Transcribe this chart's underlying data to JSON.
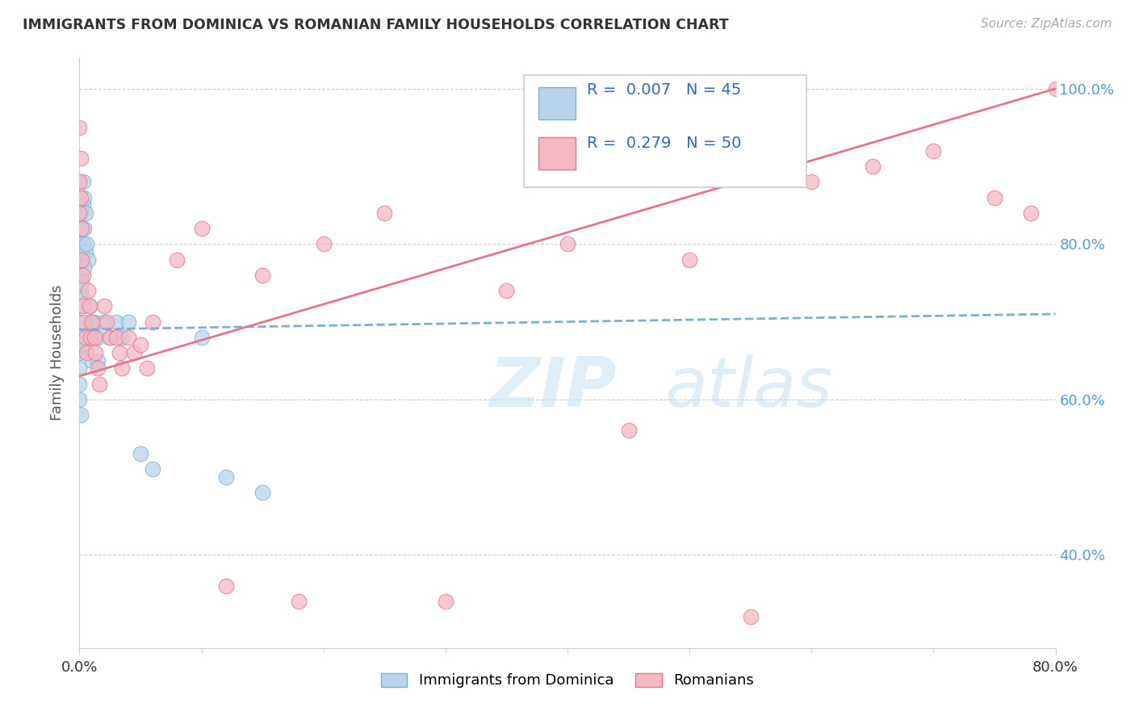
{
  "title": "IMMIGRANTS FROM DOMINICA VS ROMANIAN FAMILY HOUSEHOLDS CORRELATION CHART",
  "source": "Source: ZipAtlas.com",
  "ylabel": "Family Households",
  "dominica_x": [
    0.0,
    0.0,
    0.0,
    0.0,
    0.0,
    0.0,
    0.001,
    0.001,
    0.001,
    0.001,
    0.001,
    0.002,
    0.002,
    0.002,
    0.003,
    0.003,
    0.003,
    0.004,
    0.004,
    0.005,
    0.005,
    0.006,
    0.007,
    0.008,
    0.009,
    0.01,
    0.01,
    0.012,
    0.015,
    0.015,
    0.02,
    0.025,
    0.03,
    0.035,
    0.04,
    0.05,
    0.06,
    0.1,
    0.12,
    0.15,
    0.0,
    0.001,
    0.002,
    0.003,
    0.004
  ],
  "dominica_y": [
    0.72,
    0.7,
    0.68,
    0.66,
    0.64,
    0.62,
    0.84,
    0.8,
    0.78,
    0.76,
    0.74,
    0.82,
    0.78,
    0.75,
    0.88,
    0.85,
    0.8,
    0.86,
    0.82,
    0.84,
    0.79,
    0.8,
    0.78,
    0.72,
    0.7,
    0.68,
    0.65,
    0.7,
    0.68,
    0.65,
    0.7,
    0.68,
    0.7,
    0.68,
    0.7,
    0.53,
    0.51,
    0.68,
    0.5,
    0.48,
    0.6,
    0.58,
    0.67,
    0.73,
    0.77
  ],
  "romanians_x": [
    0.0,
    0.0,
    0.0,
    0.001,
    0.001,
    0.002,
    0.002,
    0.003,
    0.003,
    0.004,
    0.005,
    0.006,
    0.007,
    0.008,
    0.009,
    0.01,
    0.012,
    0.013,
    0.015,
    0.016,
    0.02,
    0.022,
    0.025,
    0.03,
    0.033,
    0.035,
    0.04,
    0.045,
    0.05,
    0.055,
    0.06,
    0.08,
    0.1,
    0.12,
    0.15,
    0.18,
    0.2,
    0.25,
    0.3,
    0.35,
    0.4,
    0.45,
    0.5,
    0.55,
    0.6,
    0.65,
    0.7,
    0.75,
    0.78,
    0.8
  ],
  "romanians_y": [
    0.95,
    0.88,
    0.84,
    0.91,
    0.86,
    0.82,
    0.78,
    0.76,
    0.72,
    0.7,
    0.68,
    0.66,
    0.74,
    0.72,
    0.68,
    0.7,
    0.68,
    0.66,
    0.64,
    0.62,
    0.72,
    0.7,
    0.68,
    0.68,
    0.66,
    0.64,
    0.68,
    0.66,
    0.67,
    0.64,
    0.7,
    0.78,
    0.82,
    0.36,
    0.76,
    0.34,
    0.8,
    0.84,
    0.34,
    0.74,
    0.8,
    0.56,
    0.78,
    0.32,
    0.88,
    0.9,
    0.92,
    0.86,
    0.84,
    1.0
  ],
  "xlim": [
    0.0,
    0.8
  ],
  "ylim": [
    0.28,
    1.04
  ],
  "yticks": [
    0.4,
    0.6,
    0.8,
    1.0
  ],
  "ytick_labels_right": [
    "40.0%",
    "60.0%",
    "80.0%",
    "100.0%"
  ],
  "xtick_labels": [
    "0.0%",
    "80.0%"
  ],
  "grid_color": "#cccccc",
  "dominica_line_color": "#7bafd4",
  "romanian_line_color": "#e8748a",
  "dominica_marker_facecolor": "#b8d4ea",
  "dominica_marker_edgecolor": "#7bafd4",
  "romanian_marker_facecolor": "#f5b8c4",
  "romanian_marker_edgecolor": "#e8748a",
  "title_color": "#333333",
  "source_color": "#aaaaaa",
  "right_axis_color": "#5599dd",
  "legend_R_color": "#3366cc",
  "background_color": "#ffffff",
  "legend_R1": "R =  0.007",
  "legend_N1": "N = 45",
  "legend_R2": "R =  0.279",
  "legend_N2": "N = 50",
  "legend_label1": "Immigrants from Dominica",
  "legend_label2": "Romanians"
}
